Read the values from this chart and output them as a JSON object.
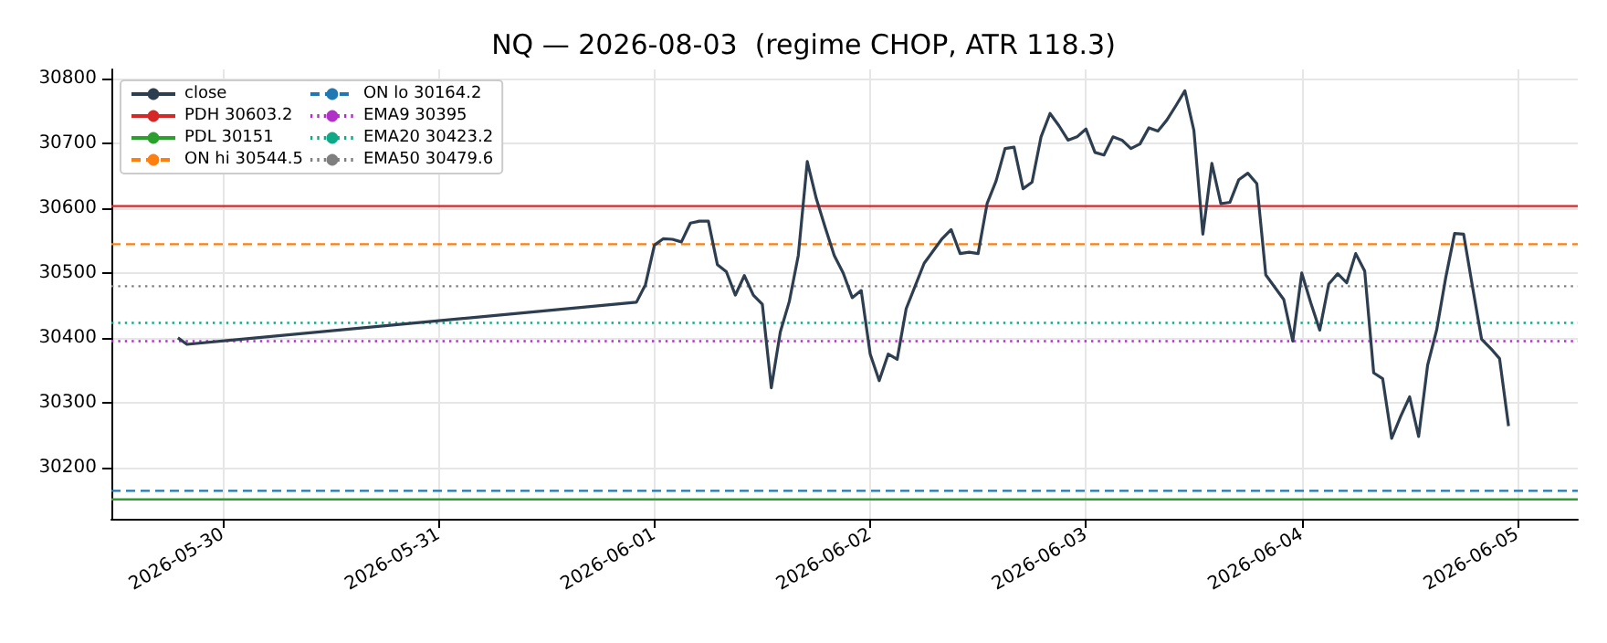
{
  "chart_data": {
    "type": "line",
    "title": "NQ — 2026-08-03  (regime CHOP, ATR 118.3)",
    "x": [
      "2026-05-29T19:00",
      "2026-05-29T20:00",
      "2026-05-31T22:00",
      "2026-05-31T23:00",
      "2026-06-01T00:00",
      "2026-06-01T01:00",
      "2026-06-01T02:00",
      "2026-06-01T03:00",
      "2026-06-01T04:00",
      "2026-06-01T05:00",
      "2026-06-01T06:00",
      "2026-06-01T07:00",
      "2026-06-01T08:00",
      "2026-06-01T09:00",
      "2026-06-01T10:00",
      "2026-06-01T11:00",
      "2026-06-01T12:00",
      "2026-06-01T13:00",
      "2026-06-01T14:00",
      "2026-06-01T15:00",
      "2026-06-01T16:00",
      "2026-06-01T17:00",
      "2026-06-01T18:00",
      "2026-06-01T19:00",
      "2026-06-01T20:00",
      "2026-06-01T21:00",
      "2026-06-01T22:00",
      "2026-06-01T23:00",
      "2026-06-02T00:00",
      "2026-06-02T01:00",
      "2026-06-02T02:00",
      "2026-06-02T03:00",
      "2026-06-02T04:00",
      "2026-06-02T05:00",
      "2026-06-02T06:00",
      "2026-06-02T07:00",
      "2026-06-02T08:00",
      "2026-06-02T09:00",
      "2026-06-02T10:00",
      "2026-06-02T11:00",
      "2026-06-02T12:00",
      "2026-06-02T13:00",
      "2026-06-02T14:00",
      "2026-06-02T15:00",
      "2026-06-02T16:00",
      "2026-06-02T17:00",
      "2026-06-02T18:00",
      "2026-06-02T19:00",
      "2026-06-02T20:00",
      "2026-06-02T21:00",
      "2026-06-02T22:00",
      "2026-06-02T23:00",
      "2026-06-03T00:00",
      "2026-06-03T01:00",
      "2026-06-03T02:00",
      "2026-06-03T03:00",
      "2026-06-03T04:00",
      "2026-06-03T05:00",
      "2026-06-03T06:00",
      "2026-06-03T07:00",
      "2026-06-03T08:00",
      "2026-06-03T09:00",
      "2026-06-03T10:00",
      "2026-06-03T11:00",
      "2026-06-03T12:00",
      "2026-06-03T13:00",
      "2026-06-03T14:00",
      "2026-06-03T15:00",
      "2026-06-03T16:00",
      "2026-06-03T17:00",
      "2026-06-03T18:00",
      "2026-06-03T19:00",
      "2026-06-03T20:00",
      "2026-06-03T21:00",
      "2026-06-03T22:00",
      "2026-06-03T23:00",
      "2026-06-04T00:00",
      "2026-06-04T01:00",
      "2026-06-04T02:00",
      "2026-06-04T03:00",
      "2026-06-04T04:00",
      "2026-06-04T05:00",
      "2026-06-04T06:00",
      "2026-06-04T07:00",
      "2026-06-04T08:00",
      "2026-06-04T09:00",
      "2026-06-04T10:00",
      "2026-06-04T11:00",
      "2026-06-04T12:00",
      "2026-06-04T13:00",
      "2026-06-04T14:00",
      "2026-06-04T15:00",
      "2026-06-04T16:00",
      "2026-06-04T17:00",
      "2026-06-04T18:00",
      "2026-06-04T19:00",
      "2026-06-04T20:00",
      "2026-06-04T21:00",
      "2026-06-04T22:00",
      "2026-06-04T23:00"
    ],
    "series": [
      {
        "name": "close",
        "color": "#2d3e50",
        "values": [
          30400,
          30390,
          30455,
          30482,
          30543,
          30553,
          30552,
          30548,
          30577,
          30580,
          30580,
          30513,
          30502,
          30466,
          30496,
          30466,
          30452,
          30323,
          30409,
          30456,
          30527,
          30672,
          30615,
          30570,
          30527,
          30500,
          30462,
          30473,
          30375,
          30334,
          30375,
          30367,
          30445,
          30480,
          30515,
          30534,
          30553,
          30567,
          30530,
          30532,
          30530,
          30607,
          30642,
          30692,
          30694,
          30630,
          30640,
          30710,
          30746,
          30727,
          30705,
          30710,
          30722,
          30686,
          30682,
          30710,
          30705,
          30692,
          30699,
          30724,
          30719,
          30736,
          30758,
          30781,
          30720,
          30560,
          30669,
          30607,
          30609,
          30644,
          30654,
          30638,
          30497,
          30478,
          30459,
          30395,
          30500,
          30454,
          30412,
          30483,
          30499,
          30485,
          30530,
          30503,
          30346,
          30337,
          30245,
          30279,
          30309,
          30248,
          30358,
          30412,
          30492,
          30561,
          30560,
          30478,
          30398,
          30384,
          30368,
          30264
        ]
      }
    ],
    "ref_lines": [
      {
        "axis": "y",
        "value": 30603.2,
        "label": "PDH 30603.2",
        "color": "#d62728",
        "line_style": "solid"
      },
      {
        "axis": "y",
        "value": 30151,
        "label": "PDL 30151",
        "color": "#2ca02c",
        "line_style": "solid"
      },
      {
        "axis": "y",
        "value": 30544.5,
        "label": "ON hi 30544.5",
        "color": "#ff7f0e",
        "line_style": "dashed"
      },
      {
        "axis": "y",
        "value": 30164.2,
        "label": "ON lo 30164.2",
        "color": "#1f77b4",
        "line_style": "dashed"
      },
      {
        "axis": "y",
        "value": 30395,
        "label": "EMA9 30395",
        "color": "#b030c8",
        "line_style": "dotted"
      },
      {
        "axis": "y",
        "value": 30423.2,
        "label": "EMA20 30423.2",
        "color": "#10a985",
        "line_style": "dotted"
      },
      {
        "axis": "y",
        "value": 30479.6,
        "label": "EMA50 30479.6",
        "color": "#7f7f7f",
        "line_style": "dotted"
      }
    ],
    "xlim": [
      "2026-05-29T11:36",
      "2026-06-05T06:42"
    ],
    "xticks": [
      "2026-05-30",
      "2026-05-31",
      "2026-06-01",
      "2026-06-02",
      "2026-06-03",
      "2026-06-04",
      "2026-06-05"
    ],
    "ylim": [
      30121,
      30814
    ],
    "yticks": [
      30200,
      30300,
      30400,
      30500,
      30600,
      30700,
      30800
    ],
    "grid": true,
    "legend": "top left",
    "marker": "none"
  }
}
